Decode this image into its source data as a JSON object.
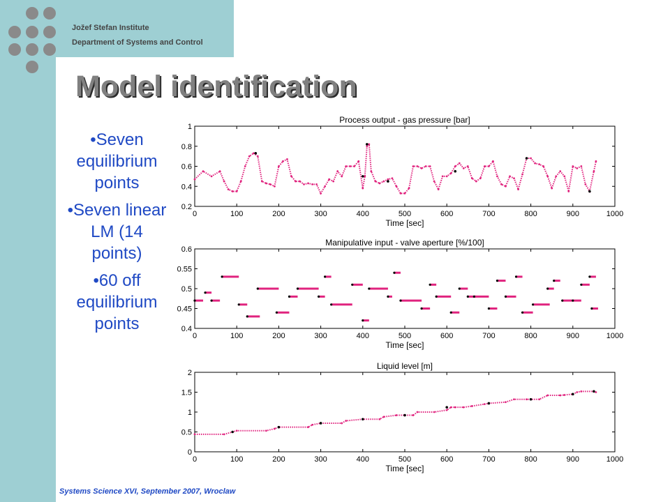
{
  "header": {
    "institute": "Jožef Stefan Institute",
    "department": "Department  of Systems and Control"
  },
  "slide": {
    "title": "Model identification",
    "bullets": [
      "•Seven equilibrium points",
      "•Seven linear LM (14 points)",
      "•60 off equilibrium points"
    ],
    "footer": "Systems Science XVI, September 2007, Wroclaw"
  },
  "colors": {
    "sidebar": "#9ecfd3",
    "circles": "#8a8a8a",
    "bullet_text": "#1f49c4",
    "series_main": "#e0237e",
    "series_points": "#000000"
  },
  "chart_data": [
    {
      "type": "scatter",
      "title": "Process output - gas pressure [bar]",
      "xlabel": "Time [sec]",
      "ylabel": "",
      "xlim": [
        0,
        1000
      ],
      "ylim": [
        0.2,
        1
      ],
      "xticks": [
        "0",
        "100",
        "200",
        "300",
        "400",
        "500",
        "600",
        "700",
        "800",
        "900",
        "1000"
      ],
      "yticks": [
        "0.2",
        "0.4",
        "0.6",
        "0.8",
        "1"
      ],
      "series": [
        {
          "color": "#e0237e",
          "x": [
            0,
            20,
            40,
            60,
            70,
            80,
            90,
            100,
            110,
            120,
            130,
            140,
            150,
            160,
            170,
            180,
            190,
            200,
            210,
            220,
            230,
            240,
            250,
            260,
            270,
            280,
            290,
            300,
            310,
            320,
            330,
            340,
            350,
            360,
            370,
            380,
            390,
            400,
            405,
            410,
            415,
            420,
            430,
            440,
            450,
            460,
            470,
            480,
            490,
            500,
            510,
            520,
            530,
            540,
            550,
            560,
            570,
            580,
            590,
            600,
            610,
            620,
            630,
            640,
            650,
            660,
            670,
            680,
            690,
            700,
            710,
            720,
            730,
            740,
            750,
            760,
            770,
            780,
            790,
            800,
            810,
            820,
            830,
            840,
            850,
            860,
            870,
            880,
            890,
            900,
            910,
            920,
            930,
            940,
            950,
            955
          ],
          "y": [
            0.47,
            0.55,
            0.5,
            0.55,
            0.45,
            0.37,
            0.35,
            0.35,
            0.45,
            0.6,
            0.7,
            0.73,
            0.7,
            0.45,
            0.43,
            0.42,
            0.4,
            0.6,
            0.65,
            0.67,
            0.5,
            0.45,
            0.45,
            0.42,
            0.43,
            0.42,
            0.42,
            0.33,
            0.4,
            0.47,
            0.45,
            0.55,
            0.5,
            0.6,
            0.6,
            0.6,
            0.65,
            0.38,
            0.5,
            0.8,
            0.82,
            0.55,
            0.45,
            0.43,
            0.45,
            0.47,
            0.48,
            0.4,
            0.33,
            0.33,
            0.38,
            0.6,
            0.6,
            0.58,
            0.6,
            0.6,
            0.45,
            0.37,
            0.5,
            0.5,
            0.53,
            0.6,
            0.63,
            0.58,
            0.6,
            0.48,
            0.45,
            0.48,
            0.6,
            0.6,
            0.65,
            0.5,
            0.42,
            0.4,
            0.5,
            0.48,
            0.37,
            0.52,
            0.68,
            0.68,
            0.63,
            0.62,
            0.6,
            0.5,
            0.38,
            0.5,
            0.55,
            0.5,
            0.35,
            0.6,
            0.58,
            0.6,
            0.42,
            0.35,
            0.55,
            0.65
          ]
        },
        {
          "color": "#000000",
          "x": [
            145,
            400,
            410,
            460,
            620,
            790,
            940
          ],
          "y": [
            0.73,
            0.5,
            0.82,
            0.45,
            0.55,
            0.68,
            0.35
          ]
        }
      ]
    },
    {
      "type": "scatter",
      "title": "Manipulative input - valve aperture [%/100]",
      "xlabel": "Time [sec]",
      "ylabel": "",
      "xlim": [
        0,
        1000
      ],
      "ylim": [
        0.4,
        0.6
      ],
      "xticks": [
        "0",
        "100",
        "200",
        "300",
        "400",
        "500",
        "600",
        "700",
        "800",
        "900",
        "1000"
      ],
      "yticks": [
        "0.4",
        "0.45",
        "0.5",
        "0.55",
        "0.6"
      ],
      "segments": [
        [
          0,
          20,
          0.47
        ],
        [
          25,
          40,
          0.49
        ],
        [
          40,
          60,
          0.47
        ],
        [
          65,
          105,
          0.53
        ],
        [
          105,
          125,
          0.46
        ],
        [
          125,
          155,
          0.43
        ],
        [
          150,
          200,
          0.5
        ],
        [
          195,
          225,
          0.44
        ],
        [
          225,
          245,
          0.48
        ],
        [
          245,
          295,
          0.5
        ],
        [
          295,
          310,
          0.48
        ],
        [
          310,
          325,
          0.53
        ],
        [
          325,
          375,
          0.46
        ],
        [
          375,
          400,
          0.51
        ],
        [
          400,
          415,
          0.42
        ],
        [
          415,
          460,
          0.5
        ],
        [
          460,
          470,
          0.48
        ],
        [
          475,
          490,
          0.54
        ],
        [
          490,
          540,
          0.47
        ],
        [
          540,
          560,
          0.45
        ],
        [
          560,
          575,
          0.51
        ],
        [
          575,
          610,
          0.48
        ],
        [
          610,
          630,
          0.44
        ],
        [
          630,
          650,
          0.5
        ],
        [
          650,
          670,
          0.48
        ],
        [
          665,
          700,
          0.48
        ],
        [
          700,
          720,
          0.45
        ],
        [
          720,
          740,
          0.52
        ],
        [
          740,
          765,
          0.48
        ],
        [
          765,
          780,
          0.53
        ],
        [
          780,
          805,
          0.44
        ],
        [
          805,
          845,
          0.46
        ],
        [
          840,
          855,
          0.5
        ],
        [
          855,
          870,
          0.52
        ],
        [
          875,
          900,
          0.47
        ],
        [
          900,
          920,
          0.47
        ],
        [
          920,
          940,
          0.51
        ],
        [
          940,
          955,
          0.53
        ],
        [
          945,
          960,
          0.45
        ]
      ]
    },
    {
      "type": "scatter",
      "title": "Liquid level [m]",
      "xlabel": "Time [sec]",
      "ylabel": "",
      "xlim": [
        0,
        1000
      ],
      "ylim": [
        0,
        2
      ],
      "xticks": [
        "0",
        "100",
        "200",
        "300",
        "400",
        "500",
        "600",
        "700",
        "800",
        "900",
        "1000"
      ],
      "yticks": [
        "0",
        "0.5",
        "1",
        "1.5",
        "2"
      ],
      "series": [
        {
          "color": "#e0237e",
          "x": [
            0,
            70,
            90,
            100,
            170,
            190,
            200,
            270,
            280,
            300,
            350,
            360,
            400,
            440,
            450,
            480,
            520,
            530,
            570,
            600,
            610,
            620,
            640,
            660,
            690,
            700,
            740,
            760,
            790,
            820,
            840,
            870,
            880,
            900,
            910,
            920,
            950,
            955
          ],
          "y": [
            0.44,
            0.44,
            0.5,
            0.53,
            0.53,
            0.58,
            0.62,
            0.62,
            0.68,
            0.72,
            0.72,
            0.78,
            0.82,
            0.82,
            0.88,
            0.92,
            0.92,
            1.0,
            1.0,
            1.05,
            1.12,
            1.12,
            1.12,
            1.15,
            1.2,
            1.22,
            1.25,
            1.32,
            1.32,
            1.32,
            1.42,
            1.42,
            1.43,
            1.45,
            1.5,
            1.52,
            1.52,
            1.5
          ]
        },
        {
          "color": "#000000",
          "x": [
            90,
            200,
            300,
            400,
            500,
            600,
            700,
            800,
            900,
            950
          ],
          "y": [
            0.5,
            0.62,
            0.72,
            0.82,
            0.92,
            1.12,
            1.22,
            1.32,
            1.45,
            1.52
          ]
        }
      ]
    }
  ]
}
